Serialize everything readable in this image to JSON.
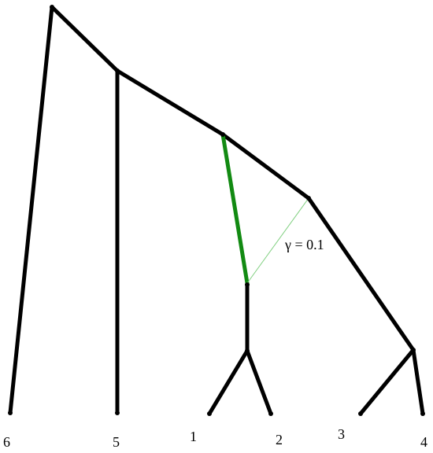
{
  "diagram": {
    "type": "phylogenetic network",
    "gamma_label": "γ = 0.1",
    "colors": {
      "tree_edge": "#000000",
      "major_hybrid_edge": "#128a12",
      "minor_hybrid_edge": "#7fcf7f"
    },
    "leaves": [
      {
        "id": "leaf-6",
        "label": "6"
      },
      {
        "id": "leaf-5",
        "label": "5"
      },
      {
        "id": "leaf-1",
        "label": "1"
      },
      {
        "id": "leaf-2",
        "label": "2"
      },
      {
        "id": "leaf-3",
        "label": "3"
      },
      {
        "id": "leaf-4",
        "label": "4"
      }
    ]
  }
}
